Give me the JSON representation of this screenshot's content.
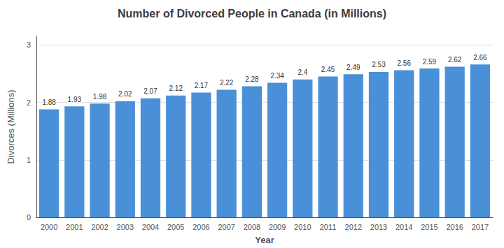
{
  "chart_data": {
    "type": "bar",
    "title": "Number of Divorced People in Canada (in Millions)",
    "xlabel": "Year",
    "ylabel": "Divorces (Millions)",
    "categories": [
      "2000",
      "2001",
      "2002",
      "2003",
      "2004",
      "2005",
      "2006",
      "2007",
      "2008",
      "2009",
      "2010",
      "2011",
      "2012",
      "2013",
      "2014",
      "2015",
      "2016",
      "2017"
    ],
    "values": [
      1.88,
      1.93,
      1.98,
      2.02,
      2.07,
      2.12,
      2.17,
      2.22,
      2.28,
      2.34,
      2.4,
      2.45,
      2.49,
      2.53,
      2.56,
      2.59,
      2.62,
      2.66
    ],
    "color": "#4a90d9",
    "ylim": [
      0,
      3.15
    ],
    "yticks": [
      0,
      1,
      2,
      3
    ],
    "grid": true,
    "data_labels": true
  }
}
